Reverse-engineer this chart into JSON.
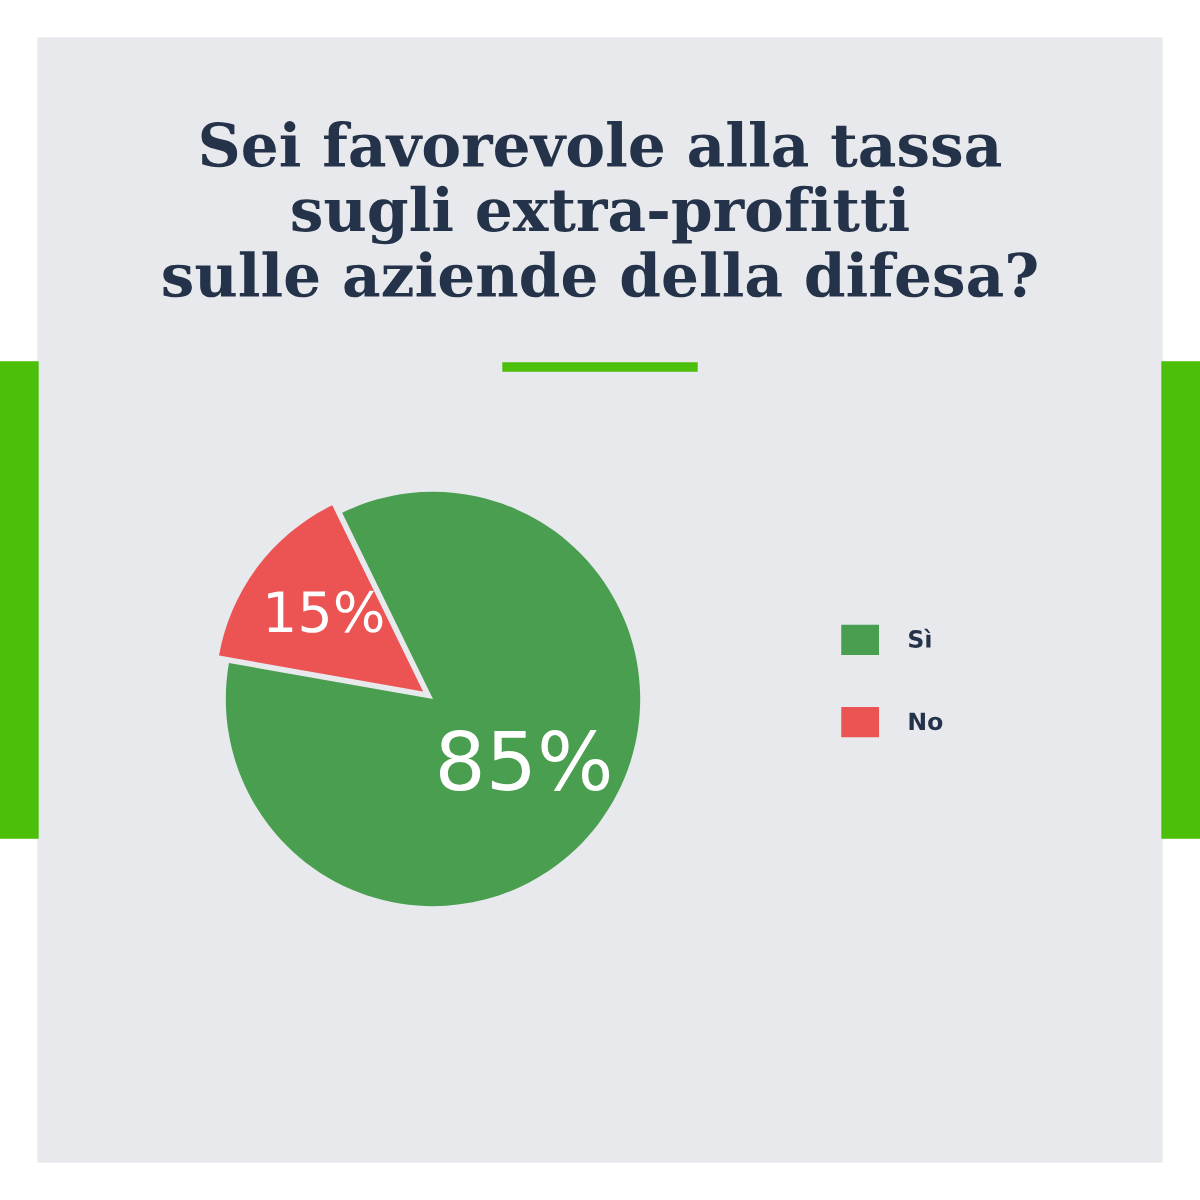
{
  "chart_data": {
    "type": "pie",
    "title": "Sei favorevole alla tassa\nsugli extra-profitti\nsulle aziende della difesa?",
    "categories": [
      "Sì",
      "No"
    ],
    "values": [
      85,
      15
    ],
    "colors": [
      "#4a9e50",
      "#ec5454"
    ],
    "value_labels": [
      "85%",
      "15%"
    ],
    "legend": "right"
  }
}
